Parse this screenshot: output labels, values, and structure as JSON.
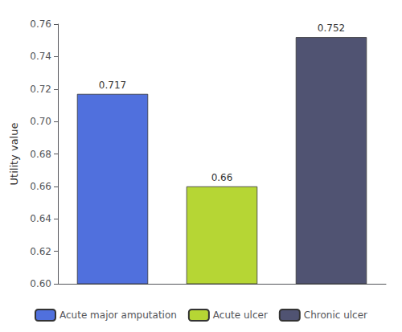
{
  "chart_data": {
    "type": "bar",
    "categories": [
      "Acute major amputation",
      "Acute ulcer",
      "Chronic ulcer"
    ],
    "values": [
      0.717,
      0.66,
      0.752
    ],
    "ylabel": "Utility value",
    "ylim": [
      0.6,
      0.76
    ],
    "yticks": [
      {
        "value": 0.6,
        "label": "0.60"
      },
      {
        "value": 0.62,
        "label": "0.62"
      },
      {
        "value": 0.64,
        "label": "0.64"
      },
      {
        "value": 0.66,
        "label": "0.66"
      },
      {
        "value": 0.68,
        "label": "0.68"
      },
      {
        "value": 0.7,
        "label": "0.70"
      },
      {
        "value": 0.72,
        "label": "0.72"
      },
      {
        "value": 0.74,
        "label": "0.74"
      },
      {
        "value": 0.76,
        "label": "0.76"
      }
    ],
    "data_labels": true,
    "tick_labels": "y",
    "legend": "bottom",
    "grid": false
  }
}
